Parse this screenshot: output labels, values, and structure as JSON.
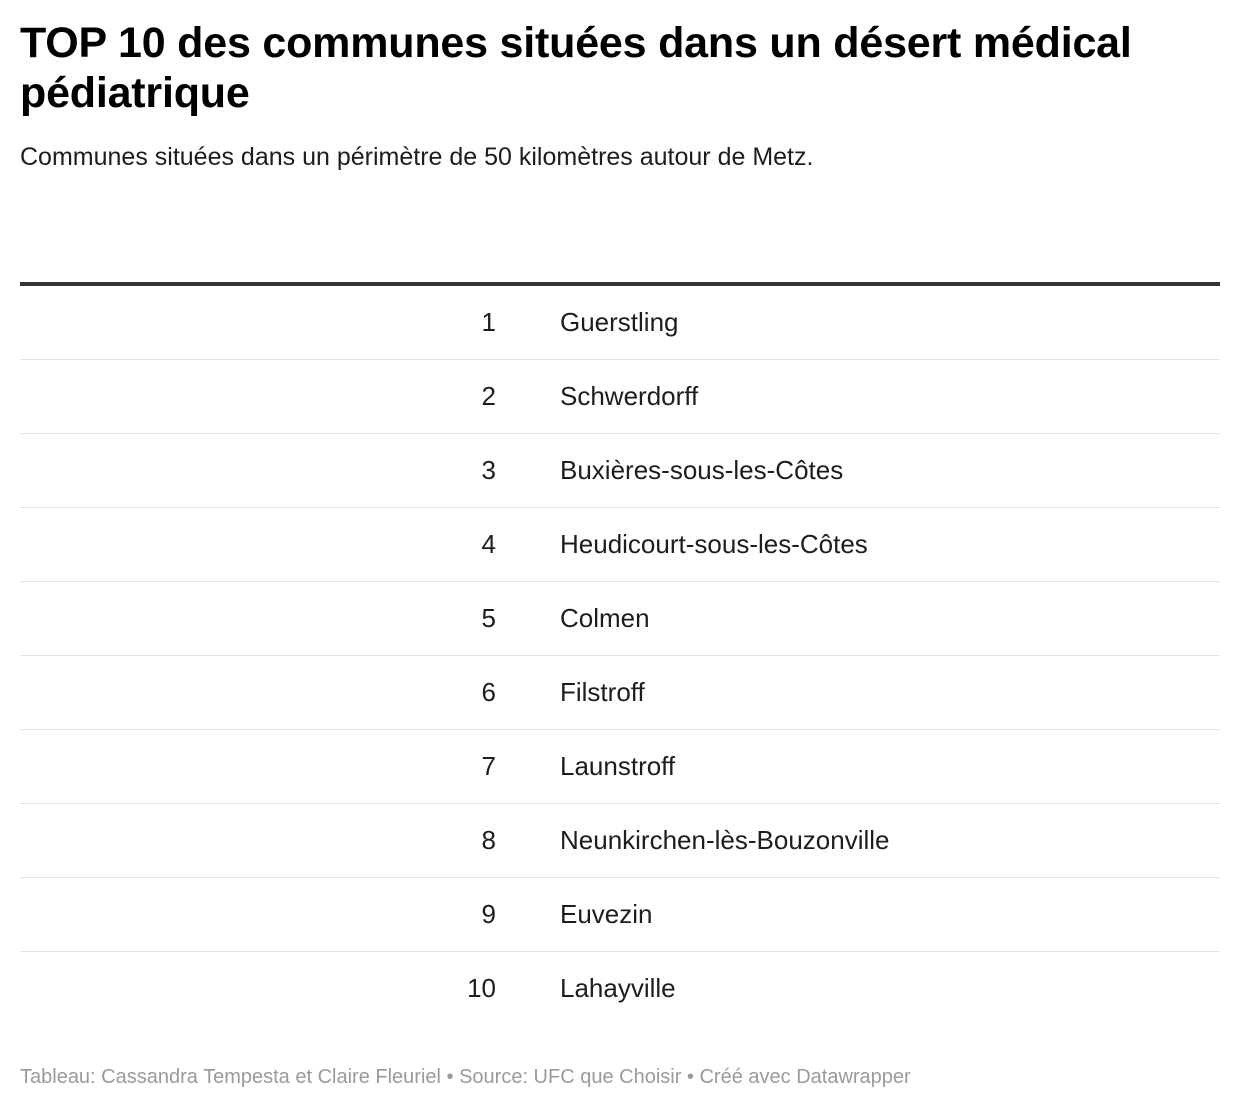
{
  "title": "TOP 10 des communes situées dans un désert médical pédiatrique",
  "subtitle": "Communes situées dans un périmètre de 50 kilomètres autour de Metz.",
  "table": {
    "rows": [
      {
        "rank": "1",
        "commune": "Guerstling"
      },
      {
        "rank": "2",
        "commune": "Schwerdorff"
      },
      {
        "rank": "3",
        "commune": "Buxières-sous-les-Côtes"
      },
      {
        "rank": "4",
        "commune": "Heudicourt-sous-les-Côtes"
      },
      {
        "rank": "5",
        "commune": "Colmen"
      },
      {
        "rank": "6",
        "commune": "Filstroff"
      },
      {
        "rank": "7",
        "commune": "Launstroff"
      },
      {
        "rank": "8",
        "commune": "Neunkirchen-lès-Bouzonville"
      },
      {
        "rank": "9",
        "commune": "Euvezin"
      },
      {
        "rank": "10",
        "commune": "Lahayville"
      }
    ]
  },
  "footer": "Tableau: Cassandra Tempesta et Claire Fleuriel • Source: UFC que Choisir • Créé avec Datawrapper",
  "colors": {
    "text": "#1d1d1d",
    "title": "#000000",
    "header_rule": "#333333",
    "row_divider": "#e2e2e2",
    "footer_text": "#9a9a9a"
  }
}
